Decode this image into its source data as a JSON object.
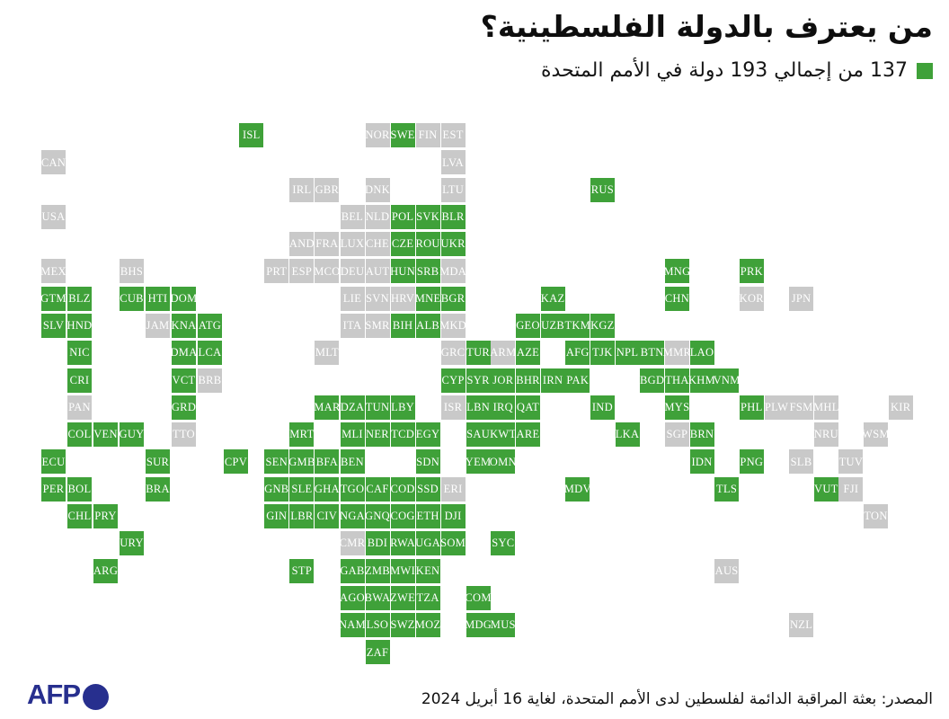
{
  "header": {
    "title": "من يعترف بالدولة الفلسطينية؟",
    "subtitle": "137 من إجمالي 193 دولة في الأمم المتحدة"
  },
  "footer": {
    "source": "المصدر: بعثة المراقبة الدائمة لفلسطين لدى الأمم المتحدة، لغاية 16 أبريل 2024",
    "logo": "AFP"
  },
  "colors": {
    "recognized_green": "#3fa139",
    "not_recognized_gray": "#c9c9c9",
    "tile_label": "#ffffff",
    "logo_navy": "#272f8e"
  },
  "chart_data": {
    "type": "tile-grid-map",
    "title": "من يعترف بالدولة الفلسطينية؟",
    "legend_label": "137 من إجمالي 193 دولة في الأمم المتحدة",
    "legend_position": "top-right",
    "recognized_count": 137,
    "un_member_total": 193,
    "recognized_color": "#3fa139",
    "not_recognized_color": "#c9c9c9",
    "tiles": [
      {
        "code": "ISL",
        "col": 7,
        "row": 0,
        "rec": 1,
        "b": "eu"
      },
      {
        "code": "NOR",
        "col": 12,
        "row": 0,
        "rec": 0
      },
      {
        "code": "SWE",
        "col": 13,
        "row": 0,
        "rec": 1
      },
      {
        "code": "FIN",
        "col": 14,
        "row": 0,
        "rec": 0
      },
      {
        "code": "EST",
        "col": 15,
        "row": 0,
        "rec": 0
      },
      {
        "code": "CAN",
        "col": 0,
        "row": 1,
        "rec": 0
      },
      {
        "code": "LVA",
        "col": 15,
        "row": 1,
        "rec": 0
      },
      {
        "code": "IRL",
        "col": 9,
        "row": 2,
        "rec": 0
      },
      {
        "code": "GBR",
        "col": 10,
        "row": 2,
        "rec": 0
      },
      {
        "code": "DNK",
        "col": 12,
        "row": 2,
        "rec": 0
      },
      {
        "code": "LTU",
        "col": 15,
        "row": 2,
        "rec": 0
      },
      {
        "code": "RUS",
        "col": 21,
        "row": 2,
        "rec": 1
      },
      {
        "code": "USA",
        "col": 0,
        "row": 3,
        "rec": 0
      },
      {
        "code": "BEL",
        "col": 11,
        "row": 3,
        "rec": 0
      },
      {
        "code": "NLD",
        "col": 12,
        "row": 3,
        "rec": 0
      },
      {
        "code": "POL",
        "col": 13,
        "row": 3,
        "rec": 1
      },
      {
        "code": "SVK",
        "col": 14,
        "row": 3,
        "rec": 1
      },
      {
        "code": "BLR",
        "col": 15,
        "row": 3,
        "rec": 1
      },
      {
        "code": "AND",
        "col": 9,
        "row": 4,
        "rec": 0
      },
      {
        "code": "FRA",
        "col": 10,
        "row": 4,
        "rec": 0
      },
      {
        "code": "LUX",
        "col": 11,
        "row": 4,
        "rec": 0
      },
      {
        "code": "CHE",
        "col": 12,
        "row": 4,
        "rec": 0
      },
      {
        "code": "CZE",
        "col": 13,
        "row": 4,
        "rec": 1
      },
      {
        "code": "ROU",
        "col": 14,
        "row": 4,
        "rec": 1
      },
      {
        "code": "UKR",
        "col": 15,
        "row": 4,
        "rec": 1
      },
      {
        "code": "MEX",
        "col": 0,
        "row": 5,
        "rec": 0
      },
      {
        "code": "BHS",
        "col": 3,
        "row": 5,
        "rec": 0
      },
      {
        "code": "PRT",
        "col": 8,
        "row": 5,
        "rec": 0
      },
      {
        "code": "ESP",
        "col": 9,
        "row": 5,
        "rec": 0
      },
      {
        "code": "MCO",
        "col": 10,
        "row": 5,
        "rec": 0
      },
      {
        "code": "DEU",
        "col": 11,
        "row": 5,
        "rec": 0
      },
      {
        "code": "AUT",
        "col": 12,
        "row": 5,
        "rec": 0
      },
      {
        "code": "HUN",
        "col": 13,
        "row": 5,
        "rec": 1
      },
      {
        "code": "SRB",
        "col": 14,
        "row": 5,
        "rec": 1
      },
      {
        "code": "MDA",
        "col": 15,
        "row": 5,
        "rec": 0
      },
      {
        "code": "MNG",
        "col": 24,
        "row": 5,
        "rec": 1
      },
      {
        "code": "PRK",
        "col": 27,
        "row": 5,
        "rec": 1
      },
      {
        "code": "GTM",
        "col": 0,
        "row": 6,
        "rec": 1
      },
      {
        "code": "BLZ",
        "col": 1,
        "row": 6,
        "rec": 1
      },
      {
        "code": "CUB",
        "col": 3,
        "row": 6,
        "rec": 1
      },
      {
        "code": "HTI",
        "col": 4,
        "row": 6,
        "rec": 1
      },
      {
        "code": "DOM",
        "col": 5,
        "row": 6,
        "rec": 1
      },
      {
        "code": "LIE",
        "col": 11,
        "row": 6,
        "rec": 0
      },
      {
        "code": "SVN",
        "col": 12,
        "row": 6,
        "rec": 0
      },
      {
        "code": "HRV",
        "col": 13,
        "row": 6,
        "rec": 0
      },
      {
        "code": "MNE",
        "col": 14,
        "row": 6,
        "rec": 1
      },
      {
        "code": "BGR",
        "col": 15,
        "row": 6,
        "rec": 1
      },
      {
        "code": "KAZ",
        "col": 19,
        "row": 6,
        "rec": 1
      },
      {
        "code": "CHN",
        "col": 24,
        "row": 6,
        "rec": 1
      },
      {
        "code": "KOR",
        "col": 27,
        "row": 6,
        "rec": 0
      },
      {
        "code": "JPN",
        "col": 29,
        "row": 6,
        "rec": 0
      },
      {
        "code": "SLV",
        "col": 0,
        "row": 7,
        "rec": 1
      },
      {
        "code": "HND",
        "col": 1,
        "row": 7,
        "rec": 1
      },
      {
        "code": "JAM",
        "col": 4,
        "row": 7,
        "rec": 0
      },
      {
        "code": "KNA",
        "col": 5,
        "row": 7,
        "rec": 1
      },
      {
        "code": "ATG",
        "col": 6,
        "row": 7,
        "rec": 1
      },
      {
        "code": "ITA",
        "col": 11,
        "row": 7,
        "rec": 0
      },
      {
        "code": "SMR",
        "col": 12,
        "row": 7,
        "rec": 0
      },
      {
        "code": "BIH",
        "col": 13,
        "row": 7,
        "rec": 1
      },
      {
        "code": "ALB",
        "col": 14,
        "row": 7,
        "rec": 1
      },
      {
        "code": "MKD",
        "col": 15,
        "row": 7,
        "rec": 0
      },
      {
        "code": "GEO",
        "col": 18,
        "row": 7,
        "rec": 1
      },
      {
        "code": "UZB",
        "col": 19,
        "row": 7,
        "rec": 1
      },
      {
        "code": "TKM",
        "col": 20,
        "row": 7,
        "rec": 1
      },
      {
        "code": "KGZ",
        "col": 21,
        "row": 7,
        "rec": 1
      },
      {
        "code": "NIC",
        "col": 1,
        "row": 8,
        "rec": 1
      },
      {
        "code": "DMA",
        "col": 5,
        "row": 8,
        "rec": 1
      },
      {
        "code": "LCA",
        "col": 6,
        "row": 8,
        "rec": 1
      },
      {
        "code": "MLT",
        "col": 10,
        "row": 8,
        "rec": 0
      },
      {
        "code": "GRC",
        "col": 15,
        "row": 8,
        "rec": 0
      },
      {
        "code": "TUR",
        "col": 16,
        "row": 8,
        "rec": 1
      },
      {
        "code": "ARM",
        "col": 17,
        "row": 8,
        "rec": 0
      },
      {
        "code": "AZE",
        "col": 18,
        "row": 8,
        "rec": 1
      },
      {
        "code": "AFG",
        "col": 20,
        "row": 8,
        "rec": 1
      },
      {
        "code": "TJK",
        "col": 21,
        "row": 8,
        "rec": 1
      },
      {
        "code": "NPL",
        "col": 22,
        "row": 8,
        "rec": 1
      },
      {
        "code": "BTN",
        "col": 23,
        "row": 8,
        "rec": 1
      },
      {
        "code": "MMR",
        "col": 24,
        "row": 8,
        "rec": 0
      },
      {
        "code": "LAO",
        "col": 25,
        "row": 8,
        "rec": 1
      },
      {
        "code": "CRI",
        "col": 1,
        "row": 9,
        "rec": 1
      },
      {
        "code": "VCT",
        "col": 5,
        "row": 9,
        "rec": 1
      },
      {
        "code": "BRB",
        "col": 6,
        "row": 9,
        "rec": 0
      },
      {
        "code": "CYP",
        "col": 15,
        "row": 9,
        "rec": 1
      },
      {
        "code": "SYR",
        "col": 16,
        "row": 9,
        "rec": 1
      },
      {
        "code": "JOR",
        "col": 17,
        "row": 9,
        "rec": 1
      },
      {
        "code": "BHR",
        "col": 18,
        "row": 9,
        "rec": 1
      },
      {
        "code": "IRN",
        "col": 19,
        "row": 9,
        "rec": 1
      },
      {
        "code": "PAK",
        "col": 20,
        "row": 9,
        "rec": 1
      },
      {
        "code": "BGD",
        "col": 23,
        "row": 9,
        "rec": 1
      },
      {
        "code": "THA",
        "col": 24,
        "row": 9,
        "rec": 1
      },
      {
        "code": "KHM",
        "col": 25,
        "row": 9,
        "rec": 1
      },
      {
        "code": "VNM",
        "col": 26,
        "row": 9,
        "rec": 1
      },
      {
        "code": "PAN",
        "col": 1,
        "row": 10,
        "rec": 0
      },
      {
        "code": "GRD",
        "col": 5,
        "row": 10,
        "rec": 1
      },
      {
        "code": "MAR",
        "col": 10,
        "row": 10,
        "rec": 1
      },
      {
        "code": "DZA",
        "col": 11,
        "row": 10,
        "rec": 1
      },
      {
        "code": "TUN",
        "col": 12,
        "row": 10,
        "rec": 1
      },
      {
        "code": "LBY",
        "col": 13,
        "row": 10,
        "rec": 1
      },
      {
        "code": "ISR",
        "col": 15,
        "row": 10,
        "rec": 0
      },
      {
        "code": "LBN",
        "col": 16,
        "row": 10,
        "rec": 1
      },
      {
        "code": "IRQ",
        "col": 17,
        "row": 10,
        "rec": 1
      },
      {
        "code": "QAT",
        "col": 18,
        "row": 10,
        "rec": 1
      },
      {
        "code": "IND",
        "col": 21,
        "row": 10,
        "rec": 1
      },
      {
        "code": "MYS",
        "col": 24,
        "row": 10,
        "rec": 1
      },
      {
        "code": "PHL",
        "col": 27,
        "row": 10,
        "rec": 1
      },
      {
        "code": "PLW",
        "col": 28,
        "row": 10,
        "rec": 0
      },
      {
        "code": "FSM",
        "col": 29,
        "row": 10,
        "rec": 0
      },
      {
        "code": "MHL",
        "col": 30,
        "row": 10,
        "rec": 0
      },
      {
        "code": "KIR",
        "col": 33,
        "row": 10,
        "rec": 0
      },
      {
        "code": "COL",
        "col": 1,
        "row": 11,
        "rec": 1
      },
      {
        "code": "VEN",
        "col": 2,
        "row": 11,
        "rec": 1
      },
      {
        "code": "GUY",
        "col": 3,
        "row": 11,
        "rec": 1
      },
      {
        "code": "TTO",
        "col": 5,
        "row": 11,
        "rec": 0
      },
      {
        "code": "MRT",
        "col": 9,
        "row": 11,
        "rec": 1
      },
      {
        "code": "MLI",
        "col": 11,
        "row": 11,
        "rec": 1
      },
      {
        "code": "NER",
        "col": 12,
        "row": 11,
        "rec": 1
      },
      {
        "code": "TCD",
        "col": 13,
        "row": 11,
        "rec": 1
      },
      {
        "code": "EGY",
        "col": 14,
        "row": 11,
        "rec": 1
      },
      {
        "code": "SAU",
        "col": 16,
        "row": 11,
        "rec": 1
      },
      {
        "code": "KWT",
        "col": 17,
        "row": 11,
        "rec": 1
      },
      {
        "code": "ARE",
        "col": 18,
        "row": 11,
        "rec": 1
      },
      {
        "code": "LKA",
        "col": 22,
        "row": 11,
        "rec": 1
      },
      {
        "code": "SGP",
        "col": 24,
        "row": 11,
        "rec": 0
      },
      {
        "code": "BRN",
        "col": 25,
        "row": 11,
        "rec": 1
      },
      {
        "code": "NRU",
        "col": 30,
        "row": 11,
        "rec": 0
      },
      {
        "code": "WSM",
        "col": 32,
        "row": 11,
        "rec": 0
      },
      {
        "code": "ECU",
        "col": 0,
        "row": 12,
        "rec": 1
      },
      {
        "code": "SUR",
        "col": 4,
        "row": 12,
        "rec": 1
      },
      {
        "code": "CPV",
        "col": 7,
        "row": 12,
        "rec": 1
      },
      {
        "code": "SEN",
        "col": 8,
        "row": 12,
        "rec": 1
      },
      {
        "code": "GMB",
        "col": 9,
        "row": 12,
        "rec": 1
      },
      {
        "code": "BFA",
        "col": 10,
        "row": 12,
        "rec": 1
      },
      {
        "code": "BEN",
        "col": 11,
        "row": 12,
        "rec": 1
      },
      {
        "code": "SDN",
        "col": 14,
        "row": 12,
        "rec": 1
      },
      {
        "code": "YEM",
        "col": 16,
        "row": 12,
        "rec": 1
      },
      {
        "code": "OMN",
        "col": 17,
        "row": 12,
        "rec": 1
      },
      {
        "code": "IDN",
        "col": 25,
        "row": 12,
        "rec": 1
      },
      {
        "code": "PNG",
        "col": 27,
        "row": 12,
        "rec": 1
      },
      {
        "code": "SLB",
        "col": 29,
        "row": 12,
        "rec": 0
      },
      {
        "code": "TUV",
        "col": 31,
        "row": 12,
        "rec": 0
      },
      {
        "code": "PER",
        "col": 0,
        "row": 13,
        "rec": 1
      },
      {
        "code": "BOL",
        "col": 1,
        "row": 13,
        "rec": 1
      },
      {
        "code": "BRA",
        "col": 4,
        "row": 13,
        "rec": 1
      },
      {
        "code": "GNB",
        "col": 8,
        "row": 13,
        "rec": 1
      },
      {
        "code": "SLE",
        "col": 9,
        "row": 13,
        "rec": 1
      },
      {
        "code": "GHA",
        "col": 10,
        "row": 13,
        "rec": 1
      },
      {
        "code": "TGO",
        "col": 11,
        "row": 13,
        "rec": 1
      },
      {
        "code": "CAF",
        "col": 12,
        "row": 13,
        "rec": 1
      },
      {
        "code": "COD",
        "col": 13,
        "row": 13,
        "rec": 1
      },
      {
        "code": "SSD",
        "col": 14,
        "row": 13,
        "rec": 1
      },
      {
        "code": "ERI",
        "col": 15,
        "row": 13,
        "rec": 0
      },
      {
        "code": "MDV",
        "col": 20,
        "row": 13,
        "rec": 1
      },
      {
        "code": "TLS",
        "col": 26,
        "row": 13,
        "rec": 1
      },
      {
        "code": "VUT",
        "col": 30,
        "row": 13,
        "rec": 1
      },
      {
        "code": "FJI",
        "col": 31,
        "row": 13,
        "rec": 0
      },
      {
        "code": "CHL",
        "col": 1,
        "row": 14,
        "rec": 1
      },
      {
        "code": "PRY",
        "col": 2,
        "row": 14,
        "rec": 1
      },
      {
        "code": "GIN",
        "col": 8,
        "row": 14,
        "rec": 1
      },
      {
        "code": "LBR",
        "col": 9,
        "row": 14,
        "rec": 1
      },
      {
        "code": "CIV",
        "col": 10,
        "row": 14,
        "rec": 1
      },
      {
        "code": "NGA",
        "col": 11,
        "row": 14,
        "rec": 1
      },
      {
        "code": "GNQ",
        "col": 12,
        "row": 14,
        "rec": 1
      },
      {
        "code": "COG",
        "col": 13,
        "row": 14,
        "rec": 1
      },
      {
        "code": "ETH",
        "col": 14,
        "row": 14,
        "rec": 1
      },
      {
        "code": "DJI",
        "col": 15,
        "row": 14,
        "rec": 1
      },
      {
        "code": "TON",
        "col": 32,
        "row": 14,
        "rec": 0
      },
      {
        "code": "URY",
        "col": 3,
        "row": 15,
        "rec": 1
      },
      {
        "code": "CMR",
        "col": 11,
        "row": 15,
        "rec": 0
      },
      {
        "code": "BDI",
        "col": 12,
        "row": 15,
        "rec": 1
      },
      {
        "code": "RWA",
        "col": 13,
        "row": 15,
        "rec": 1
      },
      {
        "code": "UGA",
        "col": 14,
        "row": 15,
        "rec": 1
      },
      {
        "code": "SOM",
        "col": 15,
        "row": 15,
        "rec": 1
      },
      {
        "code": "SYC",
        "col": 17,
        "row": 15,
        "rec": 1
      },
      {
        "code": "ARG",
        "col": 2,
        "row": 16,
        "rec": 1
      },
      {
        "code": "STP",
        "col": 9,
        "row": 16,
        "rec": 1
      },
      {
        "code": "GAB",
        "col": 11,
        "row": 16,
        "rec": 1
      },
      {
        "code": "ZMB",
        "col": 12,
        "row": 16,
        "rec": 1
      },
      {
        "code": "MWI",
        "col": 13,
        "row": 16,
        "rec": 1
      },
      {
        "code": "KEN",
        "col": 14,
        "row": 16,
        "rec": 1
      },
      {
        "code": "AUS",
        "col": 26,
        "row": 16,
        "rec": 0
      },
      {
        "code": "AGO",
        "col": 11,
        "row": 17,
        "rec": 1
      },
      {
        "code": "BWA",
        "col": 12,
        "row": 17,
        "rec": 1
      },
      {
        "code": "ZWE",
        "col": 13,
        "row": 17,
        "rec": 1
      },
      {
        "code": "TZA",
        "col": 14,
        "row": 17,
        "rec": 1
      },
      {
        "code": "COM",
        "col": 16,
        "row": 17,
        "rec": 1
      },
      {
        "code": "NAM",
        "col": 11,
        "row": 18,
        "rec": 1
      },
      {
        "code": "LSO",
        "col": 12,
        "row": 18,
        "rec": 1
      },
      {
        "code": "SWZ",
        "col": 13,
        "row": 18,
        "rec": 1
      },
      {
        "code": "MOZ",
        "col": 14,
        "row": 18,
        "rec": 1
      },
      {
        "code": "MDG",
        "col": 16,
        "row": 18,
        "rec": 1
      },
      {
        "code": "MUS",
        "col": 17,
        "row": 18,
        "rec": 1
      },
      {
        "code": "NZL",
        "col": 29,
        "row": 18,
        "rec": 0
      },
      {
        "code": "ZAF",
        "col": 12,
        "row": 19,
        "rec": 1
      }
    ]
  }
}
